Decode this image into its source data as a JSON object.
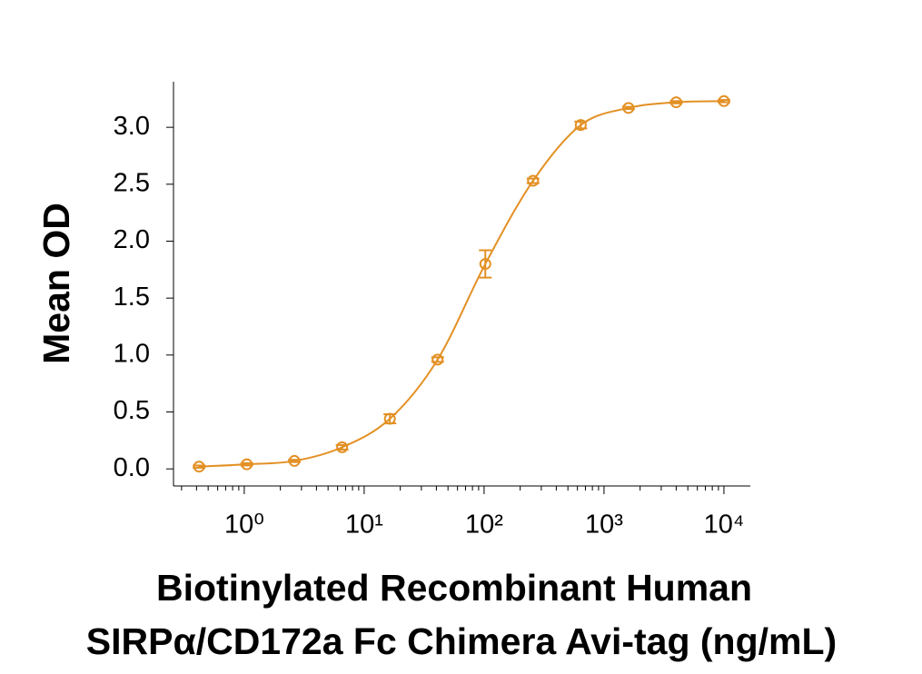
{
  "chart_data": {
    "type": "scatter",
    "x_label": [
      "Biotinylated Recombinant Human",
      "SIRPα/CD172a Fc Chimera Avi-tag (ng/mL)"
    ],
    "y_label": "Mean OD",
    "x_scale": "log",
    "color": "#e39024",
    "x": [
      0.42,
      1.05,
      2.62,
      6.55,
      16.38,
      40.96,
      102.4,
      256,
      640,
      1600,
      4000,
      10000
    ],
    "values": [
      0.02,
      0.04,
      0.07,
      0.19,
      0.44,
      0.96,
      1.8,
      2.53,
      3.02,
      3.17,
      3.22,
      3.23
    ],
    "errors": [
      0.01,
      0.01,
      0.01,
      0.02,
      0.04,
      0.02,
      0.12,
      0.02,
      0.03,
      0.01,
      0.01,
      0.01
    ],
    "xlim": [
      0.257,
      16600
    ],
    "xticks": [
      {
        "value": 1,
        "label": "10⁰"
      },
      {
        "value": 10,
        "label": "10¹"
      },
      {
        "value": 100,
        "label": "10²"
      },
      {
        "value": 1000,
        "label": "10³"
      },
      {
        "value": 10000,
        "label": "10⁴"
      }
    ],
    "ylim": [
      -0.15,
      3.4
    ],
    "yticks": [
      {
        "value": 0,
        "label": "0.0"
      },
      0.5,
      {
        "value": 1,
        "label": "1.0"
      },
      1.5,
      {
        "value": 2,
        "label": "2.0"
      },
      2.5,
      {
        "value": 3,
        "label": "3.0"
      }
    ]
  }
}
